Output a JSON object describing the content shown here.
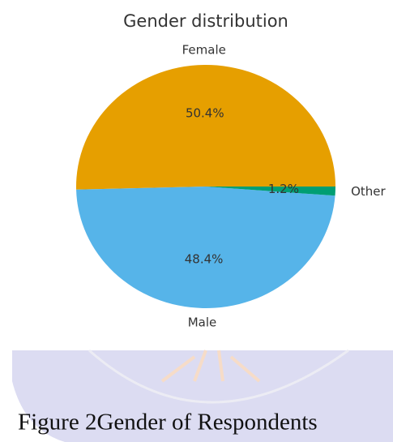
{
  "chart_data": {
    "type": "pie",
    "title": "Gender distribution",
    "categories": [
      "Female",
      "Male",
      "Other"
    ],
    "values": [
      50.4,
      48.4,
      1.2
    ],
    "value_labels": [
      "50.4%",
      "48.4%",
      "1.2%"
    ],
    "colors": [
      "#e69f00",
      "#56b4e9",
      "#009e73"
    ]
  },
  "caption": "Figure 2Gender of Respondents"
}
